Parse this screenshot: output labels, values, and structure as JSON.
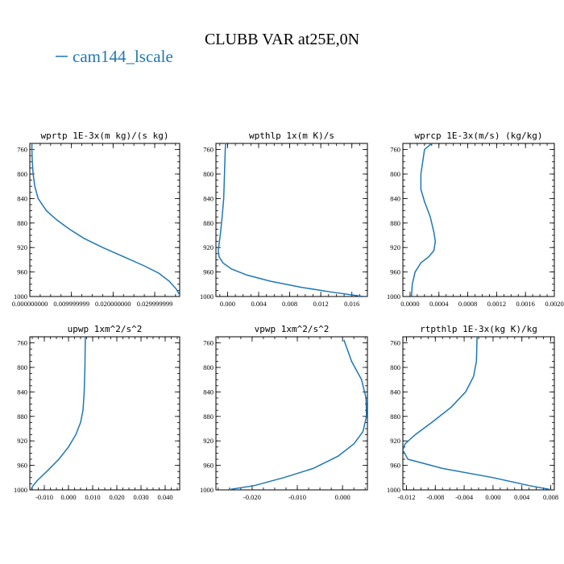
{
  "title": "CLUBB VAR at25E,0N",
  "legend": {
    "label": "cam144_lscale",
    "color": "#1f77b4"
  },
  "chart_data": [
    {
      "type": "line",
      "title": "wprtp  1E-3x(m kg)/(s kg)",
      "series_name": "cam144_lscale",
      "xlim": [
        0,
        0.036
      ],
      "ylim": [
        1000,
        750
      ],
      "x_ticks": [
        0,
        0.01,
        0.02,
        0.03
      ],
      "x_tick_labels": [
        "0.000000000",
        "0.009999999",
        "0.020000000",
        "0.029999999"
      ],
      "y_ticks": [
        760,
        800,
        840,
        880,
        920,
        960,
        1000
      ],
      "x": [
        0.0005,
        0.0005,
        0.0006,
        0.0008,
        0.0012,
        0.002,
        0.004,
        0.0065,
        0.0095,
        0.013,
        0.0175,
        0.0225,
        0.0275,
        0.031,
        0.0335,
        0.0352,
        0.0362
      ],
      "y": [
        750,
        760,
        780,
        800,
        820,
        840,
        860,
        875,
        890,
        905,
        920,
        935,
        950,
        962,
        975,
        988,
        1000
      ]
    },
    {
      "type": "line",
      "title": "wpthlp  1x(m K)/s",
      "series_name": "cam144_lscale",
      "xlim": [
        -0.0015,
        0.018
      ],
      "ylim": [
        1000,
        750
      ],
      "x_ticks": [
        0,
        0.004,
        0.008,
        0.012,
        0.016
      ],
      "x_tick_labels": [
        "0.000",
        "0.004",
        "0.008",
        "0.012",
        "0.016"
      ],
      "y_ticks": [
        760,
        800,
        840,
        880,
        920,
        960,
        1000
      ],
      "x": [
        -0.0002,
        -0.0003,
        -0.0004,
        -0.0005,
        -0.0007,
        -0.0009,
        -0.0011,
        -0.0012,
        -0.0011,
        -0.0006,
        0.0005,
        0.0025,
        0.0055,
        0.0095,
        0.0135,
        0.0175
      ],
      "y": [
        745,
        760,
        800,
        840,
        870,
        895,
        915,
        925,
        935,
        945,
        955,
        965,
        975,
        985,
        993,
        1000
      ]
    },
    {
      "type": "line",
      "title": "wprcp  1E-3x(m/s) (kg/kg)",
      "series_name": "cam144_lscale",
      "xlim": [
        -0.0001,
        0.002
      ],
      "ylim": [
        1000,
        750
      ],
      "x_ticks": [
        0,
        0.0004,
        0.0008,
        0.0012,
        0.0016,
        0.002
      ],
      "x_tick_labels": [
        "0.0000",
        "0.0004",
        "0.0008",
        "0.0012",
        "0.0016",
        "0.0020"
      ],
      "y_ticks": [
        760,
        800,
        840,
        880,
        920,
        960,
        1000
      ],
      "x": [
        0.0003,
        0.0002,
        0.00015,
        0.00015,
        0.0002,
        0.00028,
        0.00033,
        0.00035,
        0.00033,
        0.00026,
        0.00015,
        7e-05,
        3e-05,
        2e-05
      ],
      "y": [
        750,
        760,
        800,
        825,
        845,
        870,
        895,
        910,
        925,
        935,
        945,
        960,
        980,
        1000
      ]
    },
    {
      "type": "line",
      "title": "upwp  1xm^2/s^2",
      "series_name": "cam144_lscale",
      "xlim": [
        -0.016,
        0.046
      ],
      "ylim": [
        1000,
        750
      ],
      "x_ticks": [
        -0.01,
        0,
        0.01,
        0.02,
        0.03,
        0.04
      ],
      "x_tick_labels": [
        "-0.010",
        "0.000",
        "0.010",
        "0.020",
        "0.030",
        "0.040"
      ],
      "y_ticks": [
        760,
        800,
        840,
        880,
        920,
        960,
        1000
      ],
      "x": [
        0.007,
        0.0068,
        0.0065,
        0.006,
        0.005,
        0.003,
        0.0,
        -0.004,
        -0.009,
        -0.013,
        -0.015,
        -0.0155
      ],
      "y": [
        740,
        800,
        840,
        870,
        890,
        910,
        930,
        950,
        970,
        985,
        995,
        1000
      ]
    },
    {
      "type": "line",
      "title": "vpwp  1xm^2/s^2",
      "series_name": "cam144_lscale",
      "xlim": [
        -0.028,
        0.0055
      ],
      "ylim": [
        1000,
        750
      ],
      "x_ticks": [
        -0.02,
        -0.01,
        0
      ],
      "x_tick_labels": [
        "-0.020",
        "-0.010",
        "0.000"
      ],
      "y_ticks": [
        760,
        800,
        840,
        880,
        920,
        960,
        1000
      ],
      "x": [
        0.0003,
        0.002,
        0.0042,
        0.0052,
        0.0053,
        0.0045,
        0.0025,
        -0.001,
        -0.0065,
        -0.013,
        -0.0195,
        -0.0255
      ],
      "y": [
        755,
        790,
        820,
        850,
        880,
        905,
        925,
        945,
        965,
        980,
        993,
        1000
      ]
    },
    {
      "type": "line",
      "title": "rtpthlp  1E-3x(kg K)/kg",
      "series_name": "cam144_lscale",
      "xlim": [
        -0.0125,
        0.0085
      ],
      "ylim": [
        1000,
        750
      ],
      "x_ticks": [
        -0.012,
        -0.008,
        -0.004,
        0,
        0.004,
        0.008
      ],
      "x_tick_labels": [
        "-0.012",
        "-0.008",
        "-0.004",
        "0.000",
        "0.004",
        "0.008"
      ],
      "y_ticks": [
        760,
        800,
        840,
        880,
        920,
        960,
        1000
      ],
      "x": [
        -0.0022,
        -0.0023,
        -0.0027,
        -0.0038,
        -0.0058,
        -0.0085,
        -0.0108,
        -0.0122,
        -0.0125,
        -0.0118,
        -0.007,
        0.0,
        0.005,
        0.0082
      ],
      "y": [
        745,
        790,
        815,
        840,
        865,
        890,
        910,
        925,
        935,
        950,
        965,
        980,
        993,
        1000
      ]
    }
  ]
}
